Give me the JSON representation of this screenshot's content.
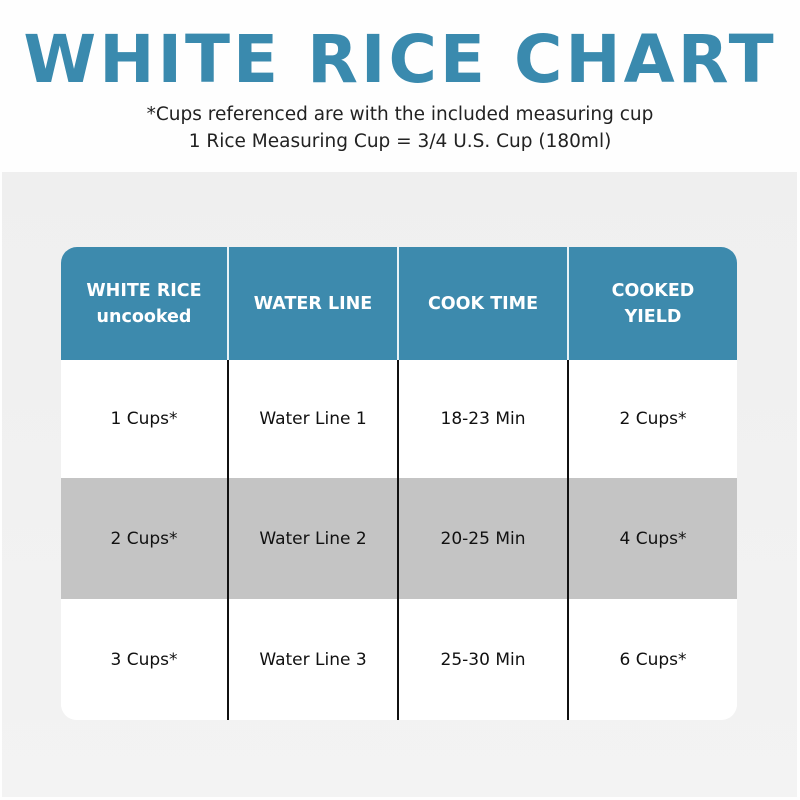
{
  "title": "WHITE RICE CHART",
  "subtitle_lines": [
    "*Cups referenced are with the included measuring cup",
    "1 Rice Measuring Cup = 3/4 U.S. Cup (180ml)"
  ],
  "colors": {
    "accent": "#3d8aad",
    "title": "#3a8aae",
    "alt_row": "#c4c4c4"
  },
  "table": {
    "headers": [
      {
        "line1": "WHITE RICE",
        "line2": "uncooked"
      },
      {
        "line1": "WATER LINE",
        "line2": ""
      },
      {
        "line1": "COOK TIME",
        "line2": ""
      },
      {
        "line1": "COOKED",
        "line2": "YIELD"
      }
    ],
    "rows": [
      [
        "1 Cups*",
        "Water Line 1",
        "18-23 Min",
        "2 Cups*"
      ],
      [
        "2 Cups*",
        "Water Line 2",
        "20-25 Min",
        "4 Cups*"
      ],
      [
        "3 Cups*",
        "Water Line 3",
        "25-30 Min",
        "6 Cups*"
      ]
    ]
  }
}
